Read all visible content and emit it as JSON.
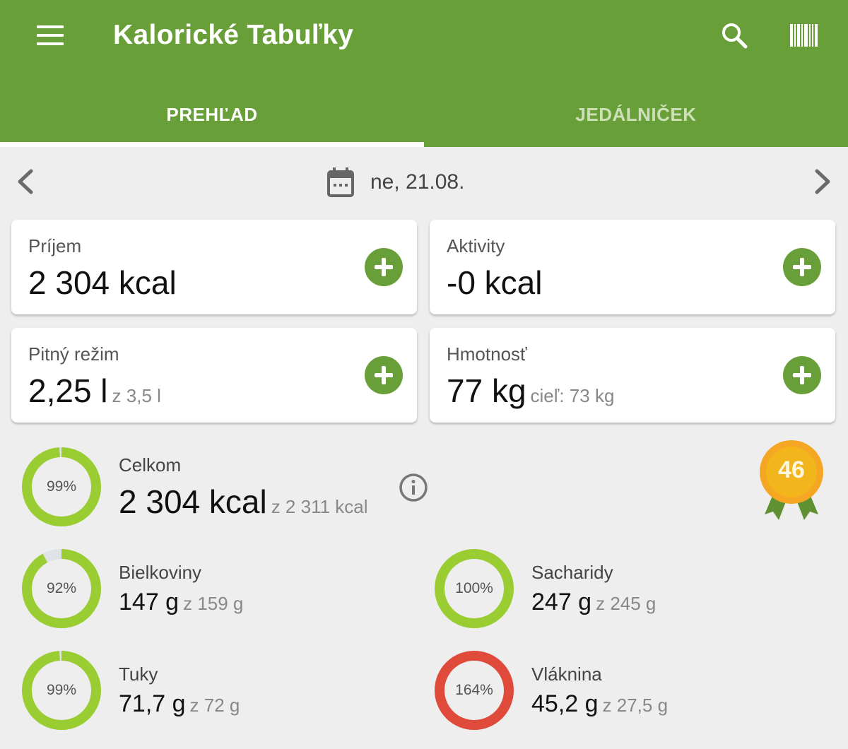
{
  "header": {
    "title": "Kalorické Tabuľky",
    "tabs": [
      {
        "label": "PREHĽAD",
        "active": true
      },
      {
        "label": "JEDÁLNIČEK",
        "active": false
      }
    ],
    "colors": {
      "primary": "#689f38",
      "inactive_tab": "#cde0b8"
    },
    "icons": [
      "menu-icon",
      "search-icon",
      "barcode-icon"
    ]
  },
  "date_nav": {
    "date": "ne, 21.08.",
    "icons": [
      "chevron-left-icon",
      "calendar-icon",
      "chevron-right-icon"
    ]
  },
  "cards": {
    "intake": {
      "label": "Príjem",
      "value": "2 304 kcal",
      "sub": ""
    },
    "activities": {
      "label": "Aktivity",
      "value": "-0 kcal",
      "sub": ""
    },
    "drinking": {
      "label": "Pitný režim",
      "value": "2,25 l",
      "sub": "z 3,5 l"
    },
    "weight": {
      "label": "Hmotnosť",
      "value": "77 kg",
      "sub": "cieľ: 73 kg"
    }
  },
  "summary": {
    "total": {
      "label": "Celkom",
      "value": "2 304 kcal",
      "goal": "z 2 311 kcal",
      "percent_text": "99%",
      "progress": 0.99,
      "color": "#9acd32"
    },
    "badge": {
      "number": "46",
      "colors": {
        "medal": "#f5a623",
        "ribbon": "#689f38"
      }
    },
    "nutrients": [
      {
        "label": "Bielkoviny",
        "value": "147 g",
        "goal": "z 159 g",
        "percent_text": "92%",
        "progress": 0.92,
        "color": "#9acd32"
      },
      {
        "label": "Sacharidy",
        "value": "247 g",
        "goal": "z 245 g",
        "percent_text": "100%",
        "progress": 1.0,
        "color": "#9acd32"
      },
      {
        "label": "Tuky",
        "value": "71,7 g",
        "goal": "z 72 g",
        "percent_text": "99%",
        "progress": 0.99,
        "color": "#9acd32"
      },
      {
        "label": "Vláknina",
        "value": "45,2 g",
        "goal": "z 27,5 g",
        "percent_text": "164%",
        "progress": 1.0,
        "color": "#e04a3a"
      }
    ],
    "ring_track_color": "#dfe3e6"
  }
}
